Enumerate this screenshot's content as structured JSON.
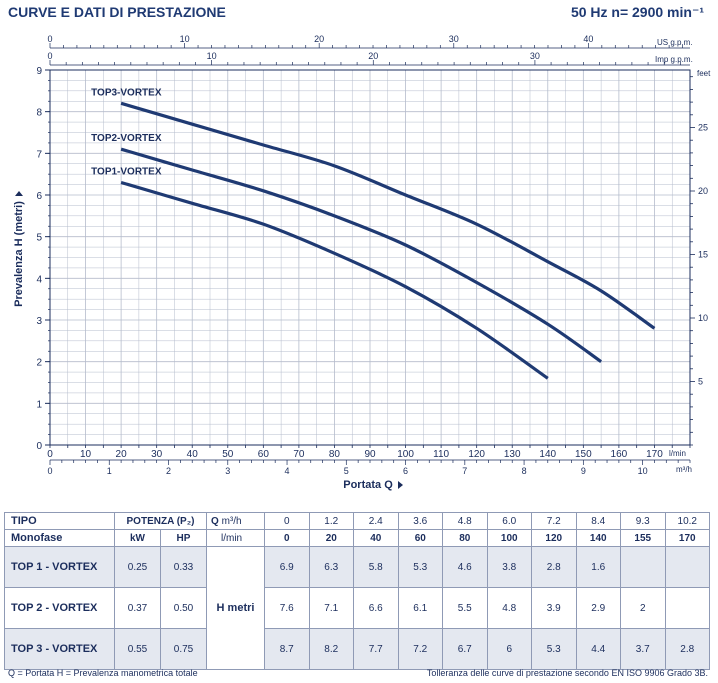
{
  "header": {
    "title": "CURVE E DATI DI PRESTAZIONE",
    "freq": "50 Hz   n= 2900 min⁻¹"
  },
  "chart_data": {
    "type": "line",
    "title": "CURVE E DATI DI PRESTAZIONE",
    "xlabel": "Portata Q",
    "ylabel": "Prevalenza H (metri)",
    "xlim": [
      0,
      180
    ],
    "ylim": [
      0,
      9
    ],
    "y2_unit": "feet",
    "y2_ticks": [
      5,
      10,
      15,
      20,
      25
    ],
    "x_lmin_ticks": [
      0,
      10,
      20,
      30,
      40,
      50,
      60,
      70,
      80,
      90,
      100,
      110,
      120,
      130,
      140,
      150,
      160,
      170
    ],
    "x_lmin_unit": "l/min",
    "x_m3h_ticks": [
      0,
      1,
      2,
      3,
      4,
      5,
      6,
      7,
      8,
      9,
      10
    ],
    "x_m3h_unit": "m³/h",
    "x_usgpm_ticks": [
      0,
      10,
      20,
      30,
      40
    ],
    "x_usgpm_unit": "US g.p.m.",
    "x_impgpm_ticks": [
      0,
      10,
      20,
      30
    ],
    "x_impgpm_unit": "Imp g.p.m.",
    "grid": true,
    "series": [
      {
        "name": "TOP1-VORTEX",
        "x": [
          20,
          40,
          60,
          80,
          100,
          120,
          140
        ],
        "y": [
          6.3,
          5.8,
          5.3,
          4.6,
          3.8,
          2.8,
          1.6
        ]
      },
      {
        "name": "TOP2-VORTEX",
        "x": [
          20,
          40,
          60,
          80,
          100,
          120,
          140,
          155
        ],
        "y": [
          7.1,
          6.6,
          6.1,
          5.5,
          4.8,
          3.9,
          2.9,
          2.0
        ]
      },
      {
        "name": "TOP3-VORTEX",
        "x": [
          20,
          40,
          60,
          80,
          100,
          120,
          140,
          155,
          170
        ],
        "y": [
          8.2,
          7.7,
          7.2,
          6.7,
          6.0,
          5.3,
          4.4,
          3.7,
          2.8
        ]
      }
    ]
  },
  "table": {
    "tipo": "TIPO",
    "monofase": "Monofase",
    "potenza": "POTENZA (P₂)",
    "kw": "kW",
    "hp": "HP",
    "q": "Q",
    "m3h": "m³/h",
    "lmin": "l/min",
    "h_metri": "H  metri",
    "q_m3h": [
      "0",
      "1.2",
      "2.4",
      "3.6",
      "4.8",
      "6.0",
      "7.2",
      "8.4",
      "9.3",
      "10.2"
    ],
    "q_lmin": [
      "0",
      "20",
      "40",
      "60",
      "80",
      "100",
      "120",
      "140",
      "155",
      "170"
    ],
    "rows": [
      {
        "name": "TOP 1 - VORTEX",
        "kw": "0.25",
        "hp": "0.33",
        "h": [
          "6.9",
          "6.3",
          "5.8",
          "5.3",
          "4.6",
          "3.8",
          "2.8",
          "1.6",
          "",
          ""
        ]
      },
      {
        "name": "TOP 2 - VORTEX",
        "kw": "0.37",
        "hp": "0.50",
        "h": [
          "7.6",
          "7.1",
          "6.6",
          "6.1",
          "5.5",
          "4.8",
          "3.9",
          "2.9",
          "2",
          ""
        ]
      },
      {
        "name": "TOP 3 - VORTEX",
        "kw": "0.55",
        "hp": "0.75",
        "h": [
          "8.7",
          "8.2",
          "7.7",
          "7.2",
          "6.7",
          "6",
          "5.3",
          "4.4",
          "3.7",
          "2.8"
        ]
      }
    ]
  },
  "footer": {
    "left": "Q = Portata   H = Prevalenza manometrica totale",
    "right": "Tolleranza delle curve di prestazione secondo EN ISO 9906 Grado 3B."
  },
  "colors": {
    "curve": "#1f3a73",
    "grid": "#b5bccc",
    "axis": "#1b2d5c"
  }
}
